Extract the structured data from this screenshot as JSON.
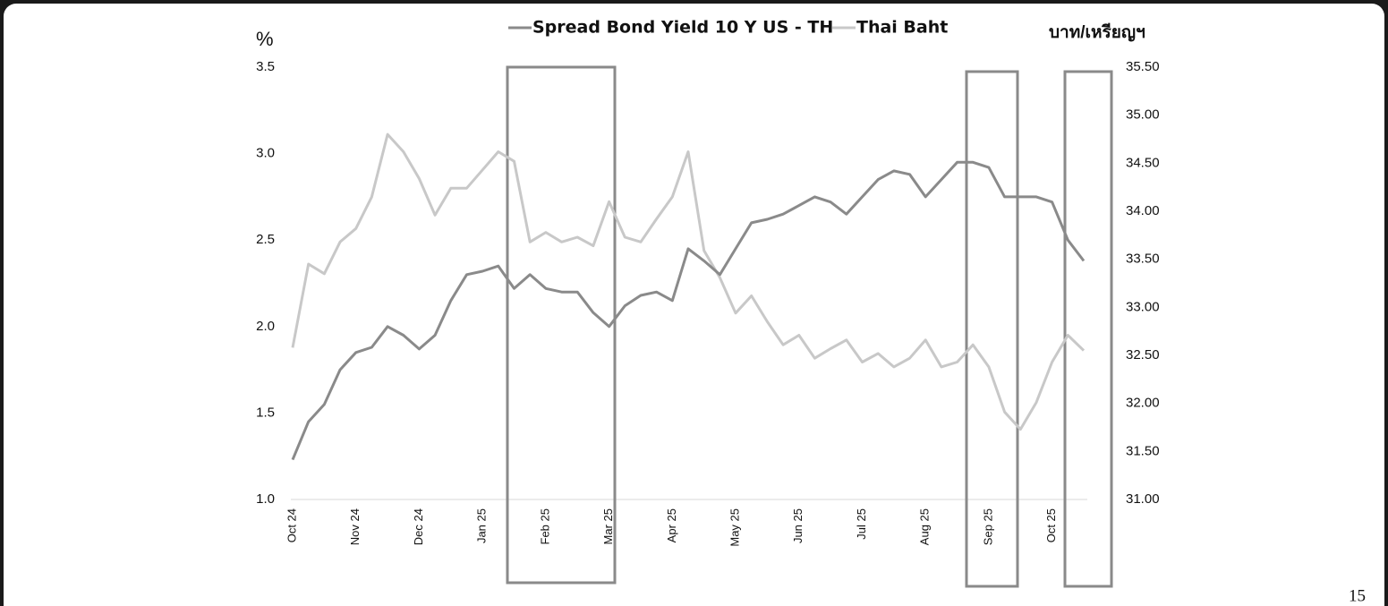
{
  "chart_data": {
    "type": "line",
    "y_label": "%",
    "y2_label": "บาท/เหรียญฯ",
    "categories": [
      "Oct 24",
      null,
      null,
      null,
      "Nov 24",
      null,
      null,
      null,
      "Dec 24",
      null,
      null,
      null,
      "Jan 25",
      null,
      null,
      null,
      "Feb 25",
      null,
      null,
      null,
      "Mar 25",
      null,
      null,
      null,
      "Apr 25",
      null,
      null,
      null,
      "May 25",
      null,
      null,
      null,
      "Jun 25",
      null,
      null,
      null,
      "Jul 25",
      null,
      null,
      null,
      "Aug 25",
      null,
      null,
      null,
      "Sep 25",
      null,
      null,
      null,
      "Oct 25",
      null,
      null
    ],
    "series": [
      {
        "name": "Spread Bond Yield 10 Y US - TH",
        "color": "#8a8a8a",
        "axis": "y",
        "values": [
          1.23,
          1.45,
          1.55,
          1.75,
          1.85,
          1.88,
          2.0,
          1.95,
          1.87,
          1.95,
          2.15,
          2.3,
          2.32,
          2.35,
          2.22,
          2.3,
          2.22,
          2.2,
          2.2,
          2.08,
          2.0,
          2.12,
          2.18,
          2.2,
          2.15,
          2.45,
          2.38,
          2.3,
          2.45,
          2.6,
          2.62,
          2.65,
          2.7,
          2.75,
          2.72,
          2.65,
          2.75,
          2.85,
          2.9,
          2.88,
          2.75,
          2.85,
          2.95,
          2.95,
          2.92,
          2.75,
          2.75,
          2.75,
          2.72,
          2.5,
          2.38
        ]
      },
      {
        "name": "Thai Baht",
        "color": "#c8c8c8",
        "axis": "y2",
        "values": [
          32.58,
          33.45,
          33.35,
          33.68,
          33.82,
          34.15,
          34.8,
          34.62,
          34.34,
          33.96,
          34.24,
          34.24,
          34.43,
          34.62,
          34.52,
          33.68,
          33.78,
          33.68,
          33.73,
          33.64,
          34.1,
          33.73,
          33.68,
          33.92,
          34.15,
          34.62,
          33.59,
          33.31,
          32.94,
          33.12,
          32.85,
          32.61,
          32.71,
          32.47,
          32.57,
          32.66,
          32.43,
          32.52,
          32.38,
          32.47,
          32.66,
          32.38,
          32.43,
          32.61,
          32.38,
          31.91,
          31.73,
          32.01,
          32.43,
          32.71,
          32.55
        ]
      }
    ],
    "ylim": [
      1.0,
      3.5
    ],
    "yticks": [
      {
        "value": 1,
        "label": "1.0"
      },
      {
        "value": 1.5,
        "label": "1.5"
      },
      {
        "value": 2,
        "label": "2.0"
      },
      {
        "value": 2.5,
        "label": "2.5"
      },
      {
        "value": 3,
        "label": "3.0"
      },
      {
        "value": 3.5,
        "label": "3.5"
      }
    ],
    "y2lim": [
      31.0,
      35.5
    ],
    "y2ticks": [
      {
        "value": 31,
        "label": "31.00"
      },
      {
        "value": 31.5,
        "label": "31.50"
      },
      {
        "value": 32,
        "label": "32.00"
      },
      {
        "value": 32.5,
        "label": "32.50"
      },
      {
        "value": 33,
        "label": "33.00"
      },
      {
        "value": 33.5,
        "label": "33.50"
      },
      {
        "value": 34,
        "label": "34.00"
      },
      {
        "value": 34.5,
        "label": "34.50"
      },
      {
        "value": 35,
        "label": "35.00"
      },
      {
        "value": 35.5,
        "label": "35.50"
      }
    ],
    "legend": "top"
  },
  "page_number": "15"
}
